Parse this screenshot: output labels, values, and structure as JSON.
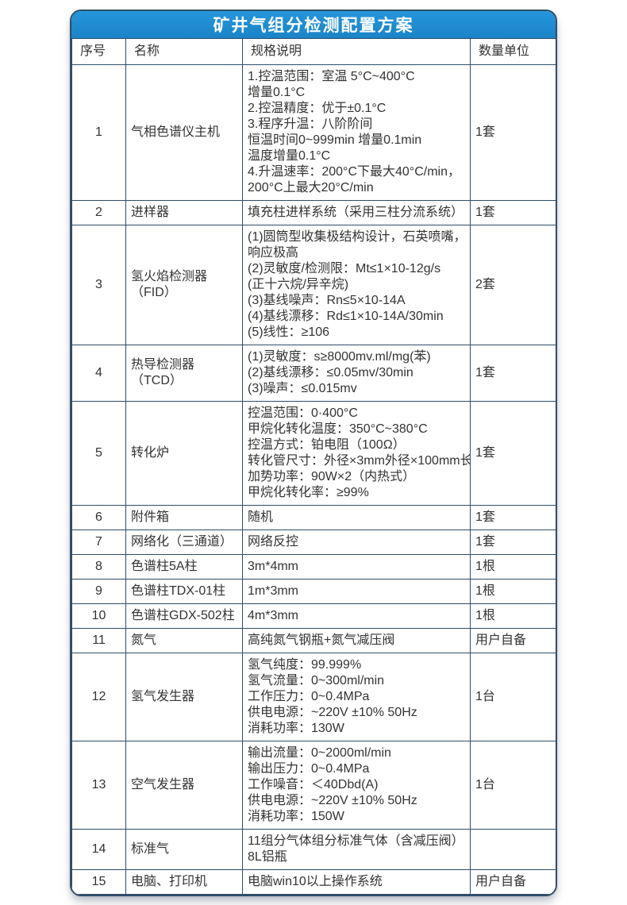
{
  "title": "矿井气组分检测配置方案",
  "colors": {
    "accent_blue": "#1f8ccd",
    "grid_border": "#2f4d68",
    "title_text": "#ffffff",
    "body_text": "#333333"
  },
  "table": {
    "headers": [
      "序号",
      "名称",
      "规格说明",
      "数量单位"
    ],
    "rows": [
      {
        "no": "1",
        "name": "气相色谱仪主机",
        "spec_lines": [
          "1.控温范围：室温 5°C~400°C",
          "增量0.1°C",
          "2.控温精度：优于±0.1°C",
          "3.程序升温：八阶阶间",
          "恒温时间0~999min 增量0.1min",
          "温度增量0.1°C",
          "4.升温速率：200°C下最大40°C/min，",
          "200°C上最大20°C/min"
        ],
        "qty": "1套"
      },
      {
        "no": "2",
        "name": "进样器",
        "spec_lines": [
          "填充柱进样系统（采用三柱分流系统）"
        ],
        "qty": "1套"
      },
      {
        "no": "3",
        "name": "氢火焰检测器（FID）",
        "spec_lines": [
          "(1)圆筒型收集极结构设计，石英喷嘴，",
          "响应极高",
          "(2)灵敏度/检测限：Mt≤1×10-12g/s",
          "(正十六烷/异辛烷)",
          "(3)基线噪声：Rn≤5×10-14A",
          "(4)基线漂移：Rd≤1×10-14A/30min",
          "(5)线性：≥106"
        ],
        "qty": "2套"
      },
      {
        "no": "4",
        "name": "热导检测器（TCD）",
        "spec_lines": [
          "(1)灵敏度：s≥8000mv.ml/mg(苯)",
          "(2)基线漂移：≤0.05mv/30min",
          "(3)噪声：≤0.015mv"
        ],
        "qty": "1套"
      },
      {
        "no": "5",
        "name": "转化炉",
        "spec_lines": [
          "控温范围：0·400°C",
          "甲烷化转化温度：350°C~380°C",
          "控温方式：铂电阻（100Ω）",
          "转化管尺寸：外径×3mm外径×100mm长",
          "加势功率：90W×2（内热式）",
          "甲烷化转化率：≥99%"
        ],
        "qty": "1套"
      },
      {
        "no": "6",
        "name": "附件箱",
        "spec_lines": [
          "随机"
        ],
        "qty": "1套"
      },
      {
        "no": "7",
        "name": "网络化（三通道）",
        "spec_lines": [
          "网络反控"
        ],
        "qty": "1套"
      },
      {
        "no": "8",
        "name": "色谱柱5A柱",
        "spec_lines": [
          "3m*4mm"
        ],
        "qty": "1根"
      },
      {
        "no": "9",
        "name": "色谱柱TDX-01柱",
        "spec_lines": [
          "1m*3mm"
        ],
        "qty": "1根"
      },
      {
        "no": "10",
        "name": "色谱柱GDX-502柱",
        "spec_lines": [
          "4m*3mm"
        ],
        "qty": "1根"
      },
      {
        "no": "11",
        "name": "氮气",
        "spec_lines": [
          "高纯氮气钢瓶+氮气减压阀"
        ],
        "qty": "用户自备"
      },
      {
        "no": "12",
        "name": "氢气发生器",
        "spec_lines": [
          "氢气纯度：99.999%",
          "氢气流量：0~300ml/min",
          "工作压力：0~0.4MPa",
          "供电电源：~220V ±10% 50Hz",
          "消耗功率：130W"
        ],
        "qty": "1台"
      },
      {
        "no": "13",
        "name": "空气发生器",
        "spec_lines": [
          "输出流量：0~2000ml/min",
          "输出压力：0~0.4MPa",
          "工作噪音：＜40Dbd(A)",
          "供电电源：~220V ±10% 50Hz",
          "消耗功率：150W"
        ],
        "qty": "1台"
      },
      {
        "no": "14",
        "name": "标准气",
        "spec_lines": [
          "11组分气体组分标准气体（含减压阀）",
          "8L铝瓶"
        ],
        "qty": ""
      },
      {
        "no": "15",
        "name": "电脑、打印机",
        "spec_lines": [
          "电脑win10以上操作系统"
        ],
        "qty": "用户自备"
      }
    ]
  }
}
